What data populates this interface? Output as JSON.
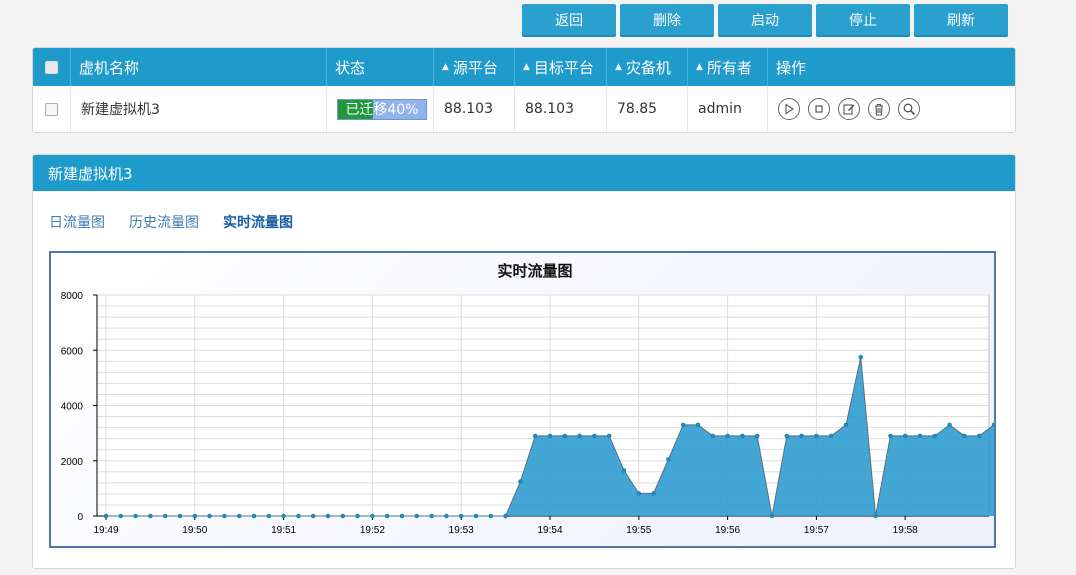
{
  "toolbar": {
    "back": "返回",
    "delete": "删除",
    "start": "启动",
    "stop": "停止",
    "refresh": "刷新"
  },
  "table": {
    "headers": {
      "name": "虚机名称",
      "status": "状态",
      "source": "源平台",
      "target": "目标平台",
      "backup": "灾备机",
      "owner": "所有者",
      "ops": "操作"
    },
    "row": {
      "name": "新建虚拟机3",
      "status_text": "已迁移40%",
      "progress": 40,
      "source": "88.103",
      "target": "88.103",
      "backup": "78.85",
      "owner": "admin",
      "op_icons": [
        "play-icon",
        "stop-icon",
        "edit-icon",
        "trash-icon",
        "search-icon"
      ]
    }
  },
  "panel": {
    "title": "新建虚拟机3",
    "tabs": [
      "日流量图",
      "历史流量图",
      "实时流量图"
    ],
    "active_tab": 2
  },
  "colors": {
    "header_blue": "#1f9bcb",
    "progress_green": "#22993a",
    "series_fill": "#2f9cd0"
  },
  "chart_data": {
    "type": "area",
    "title": "实时流量图",
    "xlabel": "",
    "ylabel": "",
    "ylim": [
      0,
      8000
    ],
    "yticks": [
      0,
      2000,
      4000,
      6000,
      8000
    ],
    "x_tick_labels": [
      "19:49",
      "19:50",
      "19:51",
      "19:52",
      "19:53",
      "19:54",
      "19:55",
      "19:56",
      "19:57",
      "19:58"
    ],
    "x_start_label": "19:49",
    "sample_interval_seconds": 10,
    "grid": true,
    "values": [
      0,
      0,
      0,
      0,
      0,
      0,
      0,
      0,
      0,
      0,
      0,
      0,
      0,
      0,
      0,
      0,
      0,
      0,
      0,
      0,
      0,
      0,
      0,
      0,
      0,
      0,
      0,
      0,
      1250,
      2900,
      2900,
      2900,
      2900,
      2900,
      2900,
      1650,
      820,
      820,
      2050,
      3300,
      3300,
      2900,
      2900,
      2900,
      2900,
      0,
      2900,
      2900,
      2900,
      2900,
      3300,
      5750,
      0,
      2900,
      2900,
      2900,
      2900,
      3300,
      2900,
      2900,
      3300
    ]
  }
}
